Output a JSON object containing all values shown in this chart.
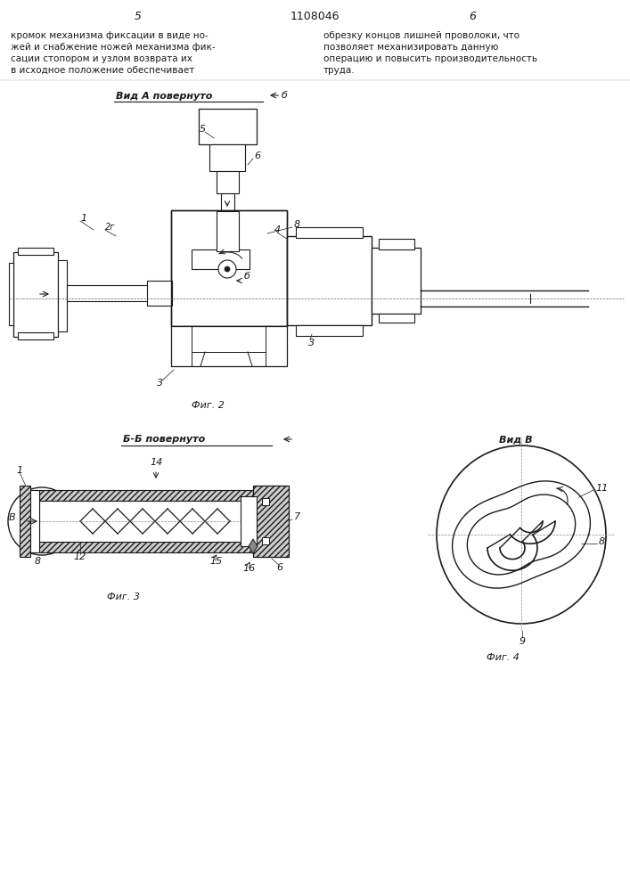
{
  "page_numbers_left": "5",
  "page_numbers_right": "6",
  "patent_number": "1108046",
  "text_left": [
    "кромок механизма фиксации в виде но-",
    "жей и снабжение ножей механизма фик-",
    "сации стопором и узлом возврата их",
    "в исходное положение обеспечивает"
  ],
  "text_right": [
    "обрезку концов лишней проволоки, что",
    "позволяет механизировать данную",
    "операцию и повысить производительность",
    "труда."
  ],
  "fig2_label": "Фиг. 2",
  "fig3_label": "Фиг. 3",
  "fig4_label": "Фиг. 4",
  "vid_a_label": "Вид А повернуто",
  "vid_b_label": "Б-Б повернуто",
  "vid_v_label": "Вид В",
  "lc": "#1a1a1a"
}
